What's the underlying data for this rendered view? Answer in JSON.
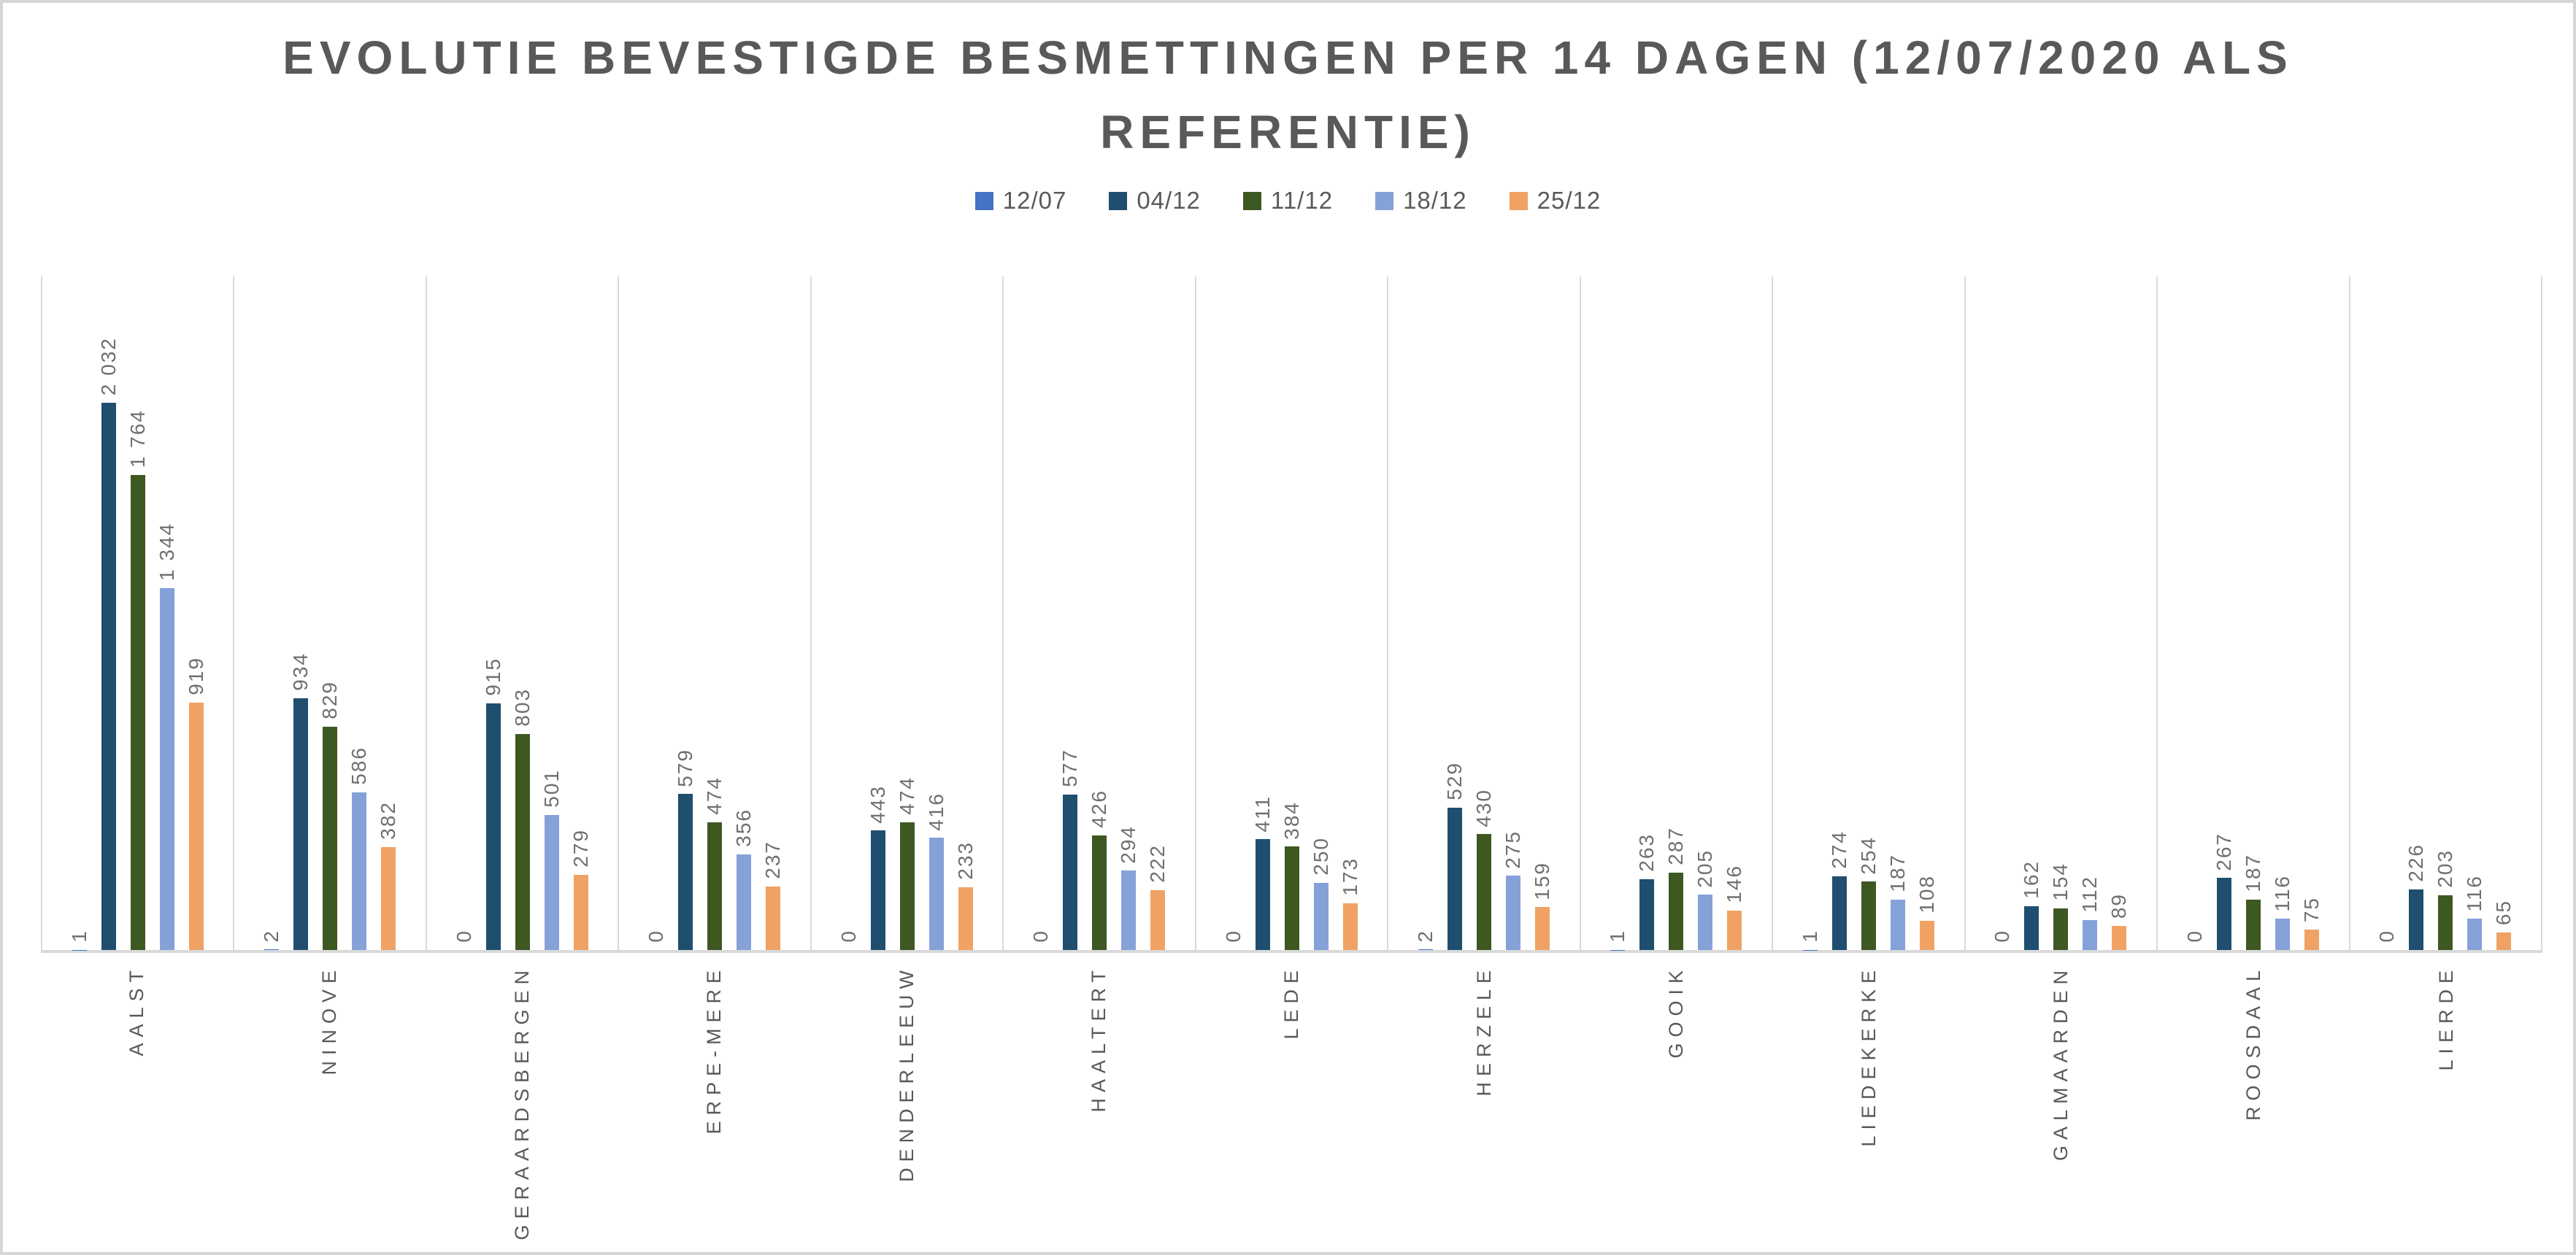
{
  "title": "EVOLUTIE BEVESTIGDE BESMETTINGEN PER 14 DAGEN (12/07/2020 ALS REFERENTIE)",
  "colors": {
    "title_text": "#595959",
    "data_label_text": "#707070",
    "axis_label_text": "#595959",
    "gridline": "#d9d9d9",
    "axis_line": "#d9d9d9",
    "chart_border": "#d6d6d6",
    "background": "#ffffff"
  },
  "chart_data": {
    "type": "bar",
    "title": "EVOLUTIE BEVESTIGDE BESMETTINGEN PER 14 DAGEN (12/07/2020 ALS REFERENTIE)",
    "legend_position": "top",
    "grid": "vertical category separators only",
    "data_labels": "rotated 90 degrees, above bars",
    "thousands_separator": " ",
    "ylim": [
      0,
      2500
    ],
    "categories": [
      "AALST",
      "NINOVE",
      "GERAARDSBERGEN",
      "ERPE-MERE",
      "DENDERLEEUW",
      "HAALTERT",
      "LEDE",
      "HERZELE",
      "GOOIK",
      "LIEDEKERKE",
      "GALMAARDEN",
      "ROOSDAAL",
      "LIERDE"
    ],
    "series": [
      {
        "name": "12/07",
        "color": "#4472c4",
        "values": [
          1,
          2,
          0,
          0,
          0,
          0,
          0,
          2,
          1,
          1,
          0,
          0,
          0
        ]
      },
      {
        "name": "04/12",
        "color": "#1f4e6f",
        "values": [
          2032,
          934,
          915,
          579,
          443,
          577,
          411,
          529,
          263,
          274,
          162,
          267,
          226
        ]
      },
      {
        "name": "11/12",
        "color": "#3e5822",
        "values": [
          1764,
          829,
          803,
          474,
          474,
          426,
          384,
          430,
          287,
          254,
          154,
          187,
          203
        ]
      },
      {
        "name": "18/12",
        "color": "#84a2d8",
        "values": [
          1344,
          586,
          501,
          356,
          416,
          294,
          250,
          275,
          205,
          187,
          112,
          116,
          116
        ]
      },
      {
        "name": "25/12",
        "color": "#f0a264",
        "values": [
          919,
          382,
          279,
          237,
          233,
          222,
          173,
          159,
          146,
          108,
          89,
          75,
          65
        ]
      }
    ]
  }
}
